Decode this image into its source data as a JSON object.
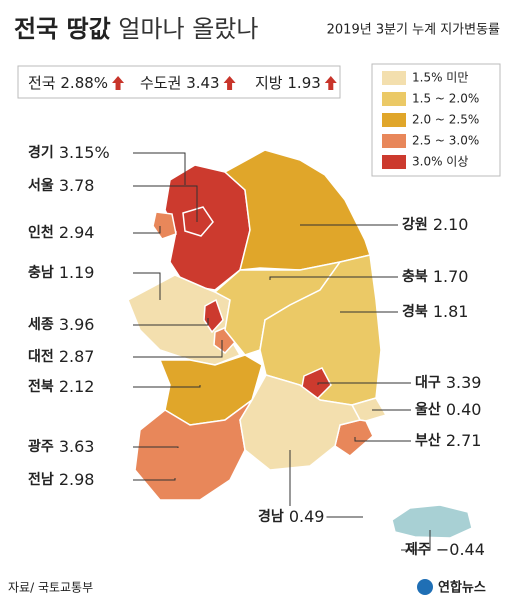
{
  "header": {
    "title": "전국 땅값",
    "title_rest": "얼마나 올랐나",
    "subtitle": "2019년 3분기 누계 지가변동률"
  },
  "summary": [
    {
      "name": "전국",
      "value": "2.88%"
    },
    {
      "name": "수도권",
      "value": "3.43"
    },
    {
      "name": "지방",
      "value": "1.93"
    }
  ],
  "legend": [
    {
      "label": "1.5% 미만",
      "color": "#f3dfae"
    },
    {
      "label": "1.5 ~ 2.0%",
      "color": "#ebc966"
    },
    {
      "label": "2.0 ~ 2.5%",
      "color": "#e0a62a"
    },
    {
      "label": "2.5 ~ 3.0%",
      "color": "#e8875a"
    },
    {
      "label": "3.0% 이상",
      "color": "#cc3a2e"
    }
  ],
  "regions": [
    {
      "name": "경기",
      "value": "3.15%",
      "color": "#cc3a2e"
    },
    {
      "name": "서울",
      "value": "3.78",
      "color": "#cc3a2e"
    },
    {
      "name": "인천",
      "value": "2.94",
      "color": "#e8875a"
    },
    {
      "name": "충남",
      "value": "1.19",
      "color": "#f3dfae"
    },
    {
      "name": "세종",
      "value": "3.96",
      "color": "#cc3a2e"
    },
    {
      "name": "대전",
      "value": "2.87",
      "color": "#e8875a"
    },
    {
      "name": "전북",
      "value": "2.12",
      "color": "#e0a62a"
    },
    {
      "name": "광주",
      "value": "3.63",
      "color": "#cc3a2e"
    },
    {
      "name": "전남",
      "value": "2.98",
      "color": "#e8875a"
    },
    {
      "name": "강원",
      "value": "2.10",
      "color": "#e0a62a"
    },
    {
      "name": "충북",
      "value": "1.70",
      "color": "#ebc966"
    },
    {
      "name": "경북",
      "value": "1.81",
      "color": "#ebc966"
    },
    {
      "name": "대구",
      "value": "3.39",
      "color": "#cc3a2e"
    },
    {
      "name": "울산",
      "value": "0.40",
      "color": "#f3dfae"
    },
    {
      "name": "부산",
      "value": "2.71",
      "color": "#e8875a"
    },
    {
      "name": "경남",
      "value": "0.49",
      "color": "#f3dfae"
    },
    {
      "name": "제주",
      "value": "−0.44",
      "color": "#a8d0d4"
    }
  ],
  "source": "자료/ 국토교통부",
  "credit": "연합뉴스"
}
